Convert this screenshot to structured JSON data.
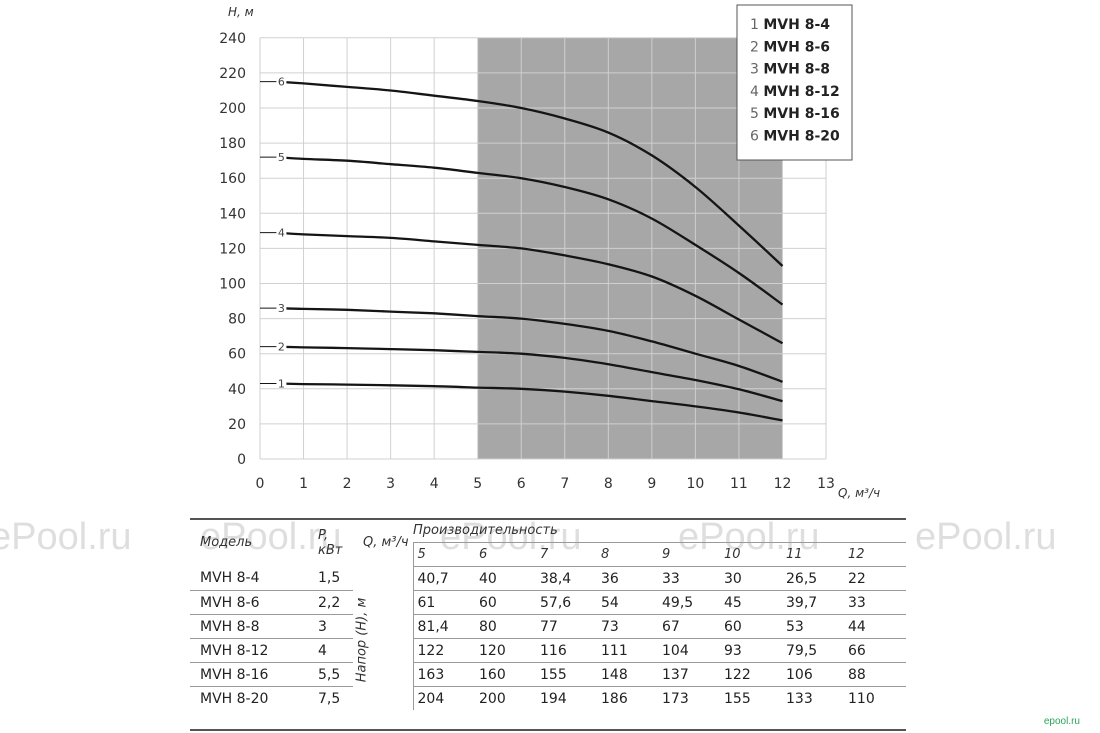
{
  "chart_data": {
    "type": "line",
    "xlabel": "Q, м³/ч",
    "ylabel": "H, м",
    "xlim": [
      0,
      13
    ],
    "ylim": [
      0,
      240
    ],
    "x_ticks": [
      0,
      1,
      2,
      3,
      4,
      5,
      6,
      7,
      8,
      9,
      10,
      11,
      12,
      13
    ],
    "y_ticks": [
      0,
      20,
      40,
      60,
      80,
      100,
      120,
      140,
      160,
      180,
      200,
      220,
      240
    ],
    "grid": true,
    "shaded_x_range": [
      5,
      12
    ],
    "legend_position": "top-right",
    "legend": [
      "1 MVH 8-4",
      "2 MVH 8-6",
      "3 MVH 8-8",
      "4 MVH 8-12",
      "5 MVH 8-16",
      "6 MVH 8-20"
    ],
    "series": [
      {
        "name": "MVH 8-4",
        "label": "1",
        "x": [
          0.4,
          1,
          2,
          3,
          4,
          5,
          6,
          7,
          8,
          9,
          10,
          11,
          12
        ],
        "y": [
          43,
          42.7,
          42.4,
          42,
          41.5,
          40.7,
          40,
          38.4,
          36,
          33,
          30,
          26.5,
          22
        ]
      },
      {
        "name": "MVH 8-6",
        "label": "2",
        "x": [
          0.4,
          1,
          2,
          3,
          4,
          5,
          6,
          7,
          8,
          9,
          10,
          11,
          12
        ],
        "y": [
          64,
          63.6,
          63.2,
          62.6,
          62,
          61,
          60,
          57.6,
          54,
          49.5,
          45,
          39.7,
          33
        ]
      },
      {
        "name": "MVH 8-8",
        "label": "3",
        "x": [
          0.4,
          1,
          2,
          3,
          4,
          5,
          6,
          7,
          8,
          9,
          10,
          11,
          12
        ],
        "y": [
          86,
          85.5,
          85,
          84,
          83,
          81.4,
          80,
          77,
          73,
          67,
          60,
          53,
          44
        ]
      },
      {
        "name": "MVH 8-12",
        "label": "4",
        "x": [
          0.4,
          1,
          2,
          3,
          4,
          5,
          6,
          7,
          8,
          9,
          10,
          11,
          12
        ],
        "y": [
          129,
          128,
          127,
          126,
          124,
          122,
          120,
          116,
          111,
          104,
          93,
          79.5,
          66
        ]
      },
      {
        "name": "MVH 8-16",
        "label": "5",
        "x": [
          0.4,
          1,
          2,
          3,
          4,
          5,
          6,
          7,
          8,
          9,
          10,
          11,
          12
        ],
        "y": [
          172,
          171,
          170,
          168,
          166,
          163,
          160,
          155,
          148,
          137,
          122,
          106,
          88
        ]
      },
      {
        "name": "MVH 8-20",
        "label": "6",
        "x": [
          0.4,
          1,
          2,
          3,
          4,
          5,
          6,
          7,
          8,
          9,
          10,
          11,
          12
        ],
        "y": [
          215,
          214,
          212,
          210,
          207,
          204,
          200,
          194,
          186,
          173,
          155,
          133,
          110
        ]
      }
    ]
  },
  "table": {
    "head": {
      "model": "Модель",
      "power": "P, кВт",
      "flow": "Q, м³/ч",
      "performance": "Производительность",
      "head_label": "Напор (H), м",
      "q_values": [
        "5",
        "6",
        "7",
        "8",
        "9",
        "10",
        "11",
        "12"
      ]
    },
    "rows": [
      {
        "model": "MVH 8-4",
        "power": "1,5",
        "values": [
          "40,7",
          "40",
          "38,4",
          "36",
          "33",
          "30",
          "26,5",
          "22"
        ]
      },
      {
        "model": "MVH 8-6",
        "power": "2,2",
        "values": [
          "61",
          "60",
          "57,6",
          "54",
          "49,5",
          "45",
          "39,7",
          "33"
        ]
      },
      {
        "model": "MVH 8-8",
        "power": "3",
        "values": [
          "81,4",
          "80",
          "77",
          "73",
          "67",
          "60",
          "53",
          "44"
        ]
      },
      {
        "model": "MVH 8-12",
        "power": "4",
        "values": [
          "122",
          "120",
          "116",
          "111",
          "104",
          "93",
          "79,5",
          "66"
        ]
      },
      {
        "model": "MVH 8-16",
        "power": "5,5",
        "values": [
          "163",
          "160",
          "155",
          "148",
          "137",
          "122",
          "106",
          "88"
        ]
      },
      {
        "model": "MVH 8-20",
        "power": "7,5",
        "values": [
          "204",
          "200",
          "194",
          "186",
          "173",
          "155",
          "133",
          "110"
        ]
      }
    ]
  },
  "watermark": "ePool.ru",
  "brand": "epool.ru",
  "colors": {
    "shade": "#a7a7a7",
    "grid": "#d0d0d0",
    "curve": "#151515"
  }
}
